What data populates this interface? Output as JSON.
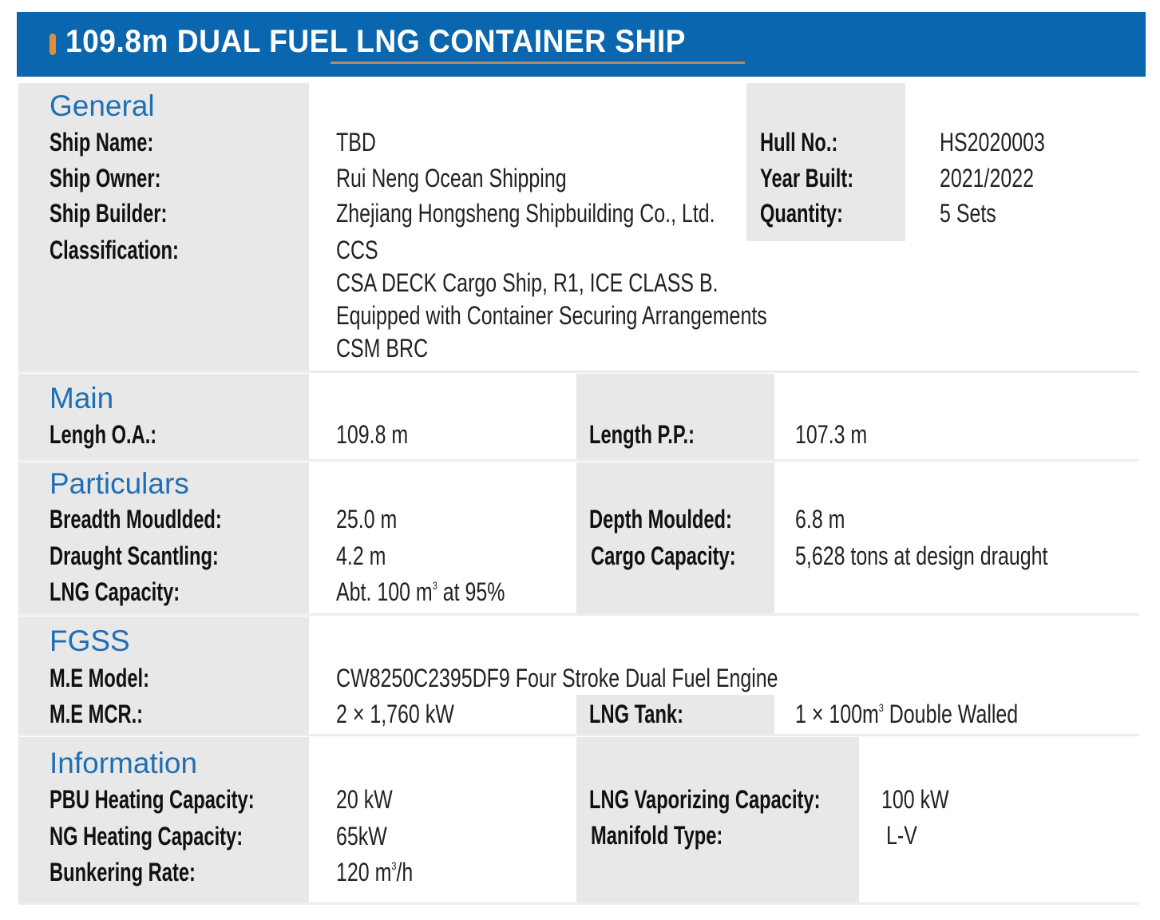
{
  "title": "109.8m DUAL FUEL LNG CONTAINER SHIP",
  "colors": {
    "header_bg": "#0a66ae",
    "accent": "#e38c3c",
    "section_heading": "#1f6fb5",
    "label_bg": "#e8e8e8"
  },
  "general": {
    "heading": "General",
    "ship_name_label": "Ship Name:",
    "ship_name": "TBD",
    "ship_owner_label": "Ship Owner:",
    "ship_owner": "Rui Neng Ocean Shipping",
    "ship_builder_label": "Ship Builder:",
    "ship_builder": "Zhejiang Hongsheng Shipbuilding Co., Ltd.",
    "classification_label": "Classification:",
    "classification": [
      "CCS",
      "CSA DECK Cargo Ship, R1, ICE CLASS B.",
      "Equipped with Container Securing Arrangements",
      "CSM BRC"
    ],
    "hull_no_label": "Hull No.:",
    "hull_no": "HS2020003",
    "year_built_label": "Year Built:",
    "year_built": "2021/2022",
    "quantity_label": "Quantity:",
    "quantity": "5 Sets"
  },
  "main": {
    "heading": "Main",
    "loa_label": "Lengh O.A.:",
    "loa": "109.8 m",
    "lpp_label": "Length P.P.:",
    "lpp": "107.3 m"
  },
  "particulars": {
    "heading": "Particulars",
    "breadth_label": "Breadth Moudlded:",
    "breadth": "25.0 m",
    "draught_label": "Draught Scantling:",
    "draught": "4.2 m",
    "lng_capacity_label": "LNG Capacity:",
    "lng_capacity_pre": "Abt. 100 m",
    "lng_capacity_sup": "3",
    "lng_capacity_post": " at 95%",
    "depth_label": "Depth Moulded:",
    "depth": "6.8 m",
    "cargo_label": "Cargo Capacity:",
    "cargo": "5,628 tons at design draught"
  },
  "fgss": {
    "heading": "FGSS",
    "me_model_label": "M.E Model:",
    "me_model": "CW8250C2395DF9 Four Stroke Dual Fuel Engine",
    "me_mcr_label": "M.E MCR.:",
    "me_mcr": "2 × 1,760 kW",
    "lng_tank_label": "LNG Tank:",
    "lng_tank_pre": "1 × 100m",
    "lng_tank_sup": "3",
    "lng_tank_post": " Double Walled"
  },
  "information": {
    "heading": "Information",
    "pbu_label": "PBU Heating Capacity:",
    "pbu": "20 kW",
    "ng_label": "NG Heating Capacity:",
    "ng": "65kW",
    "bunkering_label": "Bunkering Rate:",
    "bunkering_pre": "120 m",
    "bunkering_sup": "3",
    "bunkering_post": "/h",
    "vaporizing_label": "LNG Vaporizing Capacity:",
    "vaporizing": "100 kW",
    "manifold_label": "Manifold Type:",
    "manifold": "L-V"
  }
}
